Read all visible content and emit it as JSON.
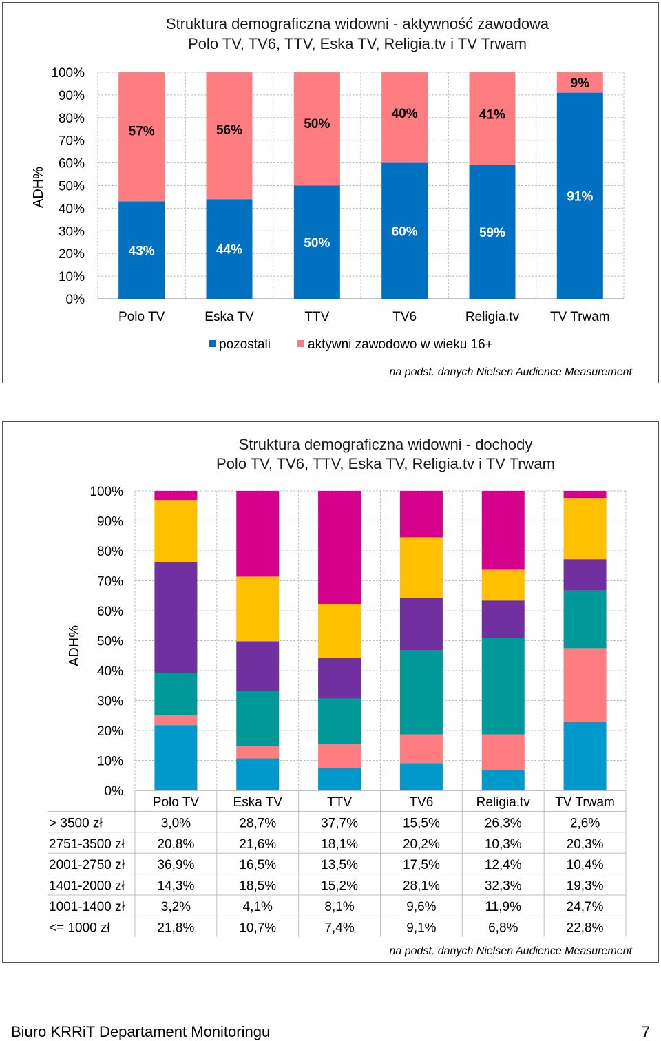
{
  "colors": {
    "blue": "#0070C0",
    "salmon": "#FF7C80",
    "income": [
      "#0099CC",
      "#FF7C80",
      "#009999",
      "#7030A0",
      "#FFC000",
      "#D6008C"
    ]
  },
  "source_note": "na podst. danych Nielsen Audience Measurement",
  "footer": {
    "left": "Biuro KRRiT Departament Monitoringu",
    "page_number": "7"
  },
  "chart_data": [
    {
      "type": "bar",
      "stacked": true,
      "title_line1": "Struktura demograficzna widowni - aktywność zawodowa",
      "title_line2": "Polo TV, TV6, TTV, Eska TV, Religia.tv i TV Trwam",
      "ylabel": "ADH%",
      "ylim": [
        0,
        100
      ],
      "yticks": [
        "0%",
        "10%",
        "20%",
        "30%",
        "40%",
        "50%",
        "60%",
        "70%",
        "80%",
        "90%",
        "100%"
      ],
      "grid": true,
      "legend_position": "bottom",
      "categories": [
        "Polo TV",
        "Eska TV",
        "TTV",
        "TV6",
        "Religia.tv",
        "TV Trwam"
      ],
      "series": [
        {
          "name": "pozostali",
          "values": [
            43,
            44,
            50,
            60,
            59,
            91
          ],
          "labels": [
            "43%",
            "44%",
            "50%",
            "60%",
            "59%",
            "91%"
          ]
        },
        {
          "name": "aktywni zawodowo w wieku 16+",
          "values": [
            57,
            56,
            50,
            40,
            41,
            9
          ],
          "labels": [
            "57%",
            "56%",
            "50%",
            "40%",
            "41%",
            "9%"
          ]
        }
      ]
    },
    {
      "type": "bar",
      "stacked": true,
      "title_line1": "Struktura demograficzna widowni - dochody",
      "title_line2": "Polo TV, TV6, TTV, Eska TV, Religia.tv i TV Trwam",
      "ylabel": "ADH%",
      "ylim": [
        0,
        100
      ],
      "yticks": [
        "0%",
        "10%",
        "20%",
        "30%",
        "40%",
        "50%",
        "60%",
        "70%",
        "80%",
        "90%",
        "100%"
      ],
      "grid": true,
      "legend_position": "bottom (data table)",
      "categories": [
        "Polo TV",
        "Eska TV",
        "TTV",
        "TV6",
        "Religia.tv",
        "TV Trwam"
      ],
      "series": [
        {
          "name": "<= 1000 zł",
          "values": [
            21.8,
            10.7,
            7.4,
            9.1,
            6.8,
            22.8
          ],
          "labels": [
            "21,8%",
            "10,7%",
            "7,4%",
            "9,1%",
            "6,8%",
            "22,8%"
          ]
        },
        {
          "name": "1001-1400 zł",
          "values": [
            3.2,
            4.1,
            8.1,
            9.6,
            11.9,
            24.7
          ],
          "labels": [
            "3,2%",
            "4,1%",
            "8,1%",
            "9,6%",
            "11,9%",
            "24,7%"
          ]
        },
        {
          "name": "1401-2000 zł",
          "values": [
            14.3,
            18.5,
            15.2,
            28.1,
            32.3,
            19.3
          ],
          "labels": [
            "14,3%",
            "18,5%",
            "15,2%",
            "28,1%",
            "32,3%",
            "19,3%"
          ]
        },
        {
          "name": "2001-2750 zł",
          "values": [
            36.9,
            16.5,
            13.5,
            17.5,
            12.4,
            10.4
          ],
          "labels": [
            "36,9%",
            "16,5%",
            "13,5%",
            "17,5%",
            "12,4%",
            "10,4%"
          ]
        },
        {
          "name": "2751-3500 zł",
          "values": [
            20.8,
            21.6,
            18.1,
            20.2,
            10.3,
            20.3
          ],
          "labels": [
            "20,8%",
            "21,6%",
            "18,1%",
            "20,2%",
            "10,3%",
            "20,3%"
          ]
        },
        {
          "name": "> 3500 zł",
          "values": [
            3.0,
            28.7,
            37.7,
            15.5,
            26.3,
            2.6
          ],
          "labels": [
            "3,0%",
            "28,7%",
            "37,7%",
            "15,5%",
            "26,3%",
            "2,6%"
          ]
        }
      ],
      "table_row_order": [
        "> 3500 zł",
        "2751-3500 zł",
        "2001-2750 zł",
        "1401-2000 zł",
        "1001-1400 zł",
        "<= 1000 zł"
      ]
    }
  ]
}
